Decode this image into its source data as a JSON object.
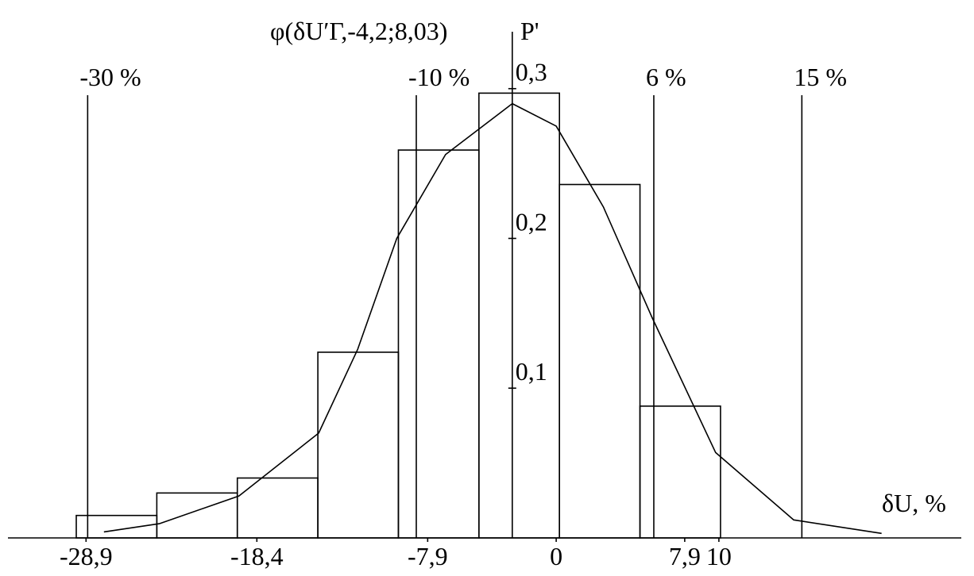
{
  "chart_data": {
    "type": "histogram",
    "curve_label": "φ(δU′Г,-4,2;8,03)",
    "y_label": "P'",
    "x_label": "δU, %",
    "bins": [
      -29.5,
      -24.55,
      -19.6,
      -14.65,
      -9.7,
      -4.75,
      0.2,
      5.15,
      10.1
    ],
    "values": [
      0.015,
      0.03,
      0.04,
      0.124,
      0.259,
      0.297,
      0.236,
      0.088
    ],
    "curve": {
      "x": [
        -27.8,
        -24.4,
        -19.5,
        -14.6,
        -12.2,
        -9.8,
        -6.8,
        -2.7,
        0,
        2.9,
        5.9,
        9.8,
        14.6,
        20.0
      ],
      "values": [
        0.004,
        0.0095,
        0.028,
        0.07,
        0.126,
        0.2,
        0.256,
        0.29,
        0.275,
        0.221,
        0.147,
        0.057,
        0.012,
        0.003
      ]
    },
    "reference_lines": [
      {
        "x": -28.8,
        "label": "-30 %"
      },
      {
        "x": -8.6,
        "label": "-10 %"
      },
      {
        "x": 6.0,
        "label": "6 %"
      },
      {
        "x": 15.1,
        "label": "15 %"
      }
    ],
    "y_axis_at": -2.7,
    "xlim": [
      -33.7,
      24.9
    ],
    "ylim": [
      0,
      0.338
    ],
    "xticks": [
      {
        "value": -28.9,
        "label": "-28,9"
      },
      {
        "value": -18.4,
        "label": "-18,4"
      },
      {
        "value": -7.9,
        "label": "-7,9"
      },
      0,
      {
        "value": 7.9,
        "label": "7,9"
      },
      10
    ],
    "yticks": [
      {
        "value": 0.1,
        "label": "0,1"
      },
      {
        "value": 0.2,
        "label": "0,2"
      },
      {
        "value": 0.3,
        "label": "0,3"
      }
    ],
    "color": "#000000"
  }
}
